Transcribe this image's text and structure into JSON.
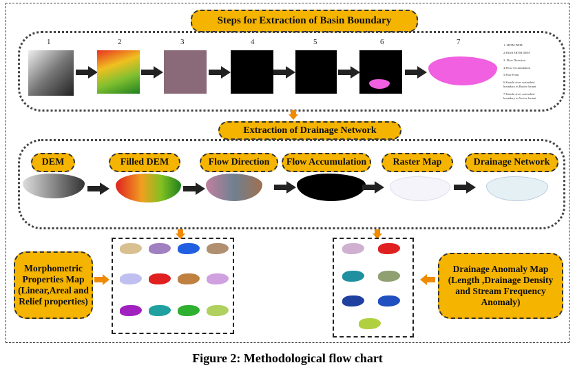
{
  "title": "Steps for Extraction of Basin Boundary",
  "steps": [
    "1",
    "2",
    "3",
    "4",
    "5",
    "6",
    "7"
  ],
  "legend": [
    "1. SRTM DEM",
    "2.Filled SRTM DEM",
    "3. Flow Direction",
    "4.Flow Accumulation",
    "5.Pour Point",
    "6.Kanchi river watershed boundary in Raster format",
    "7.Kanchi river watershed boundary in Vector format"
  ],
  "drainage_title": "Extraction of Drainage Network",
  "drainage_steps": [
    "DEM",
    "Filled DEM",
    "Flow Direction",
    "Flow Accumulation",
    "Raster Map",
    "Drainage Network"
  ],
  "morpho": "Morphometric Properties Map (Linear,Areal and Relief properties)",
  "anomaly": "Drainage Anomaly Map (Length ,Drainage Density and Stream Frequency Anomaly)",
  "caption": "Figure 2: Methodological flow chart",
  "colors": {
    "pill": "#f5b400",
    "arrow_orange": "#f08a00",
    "basin_pink": "#f060e0"
  }
}
